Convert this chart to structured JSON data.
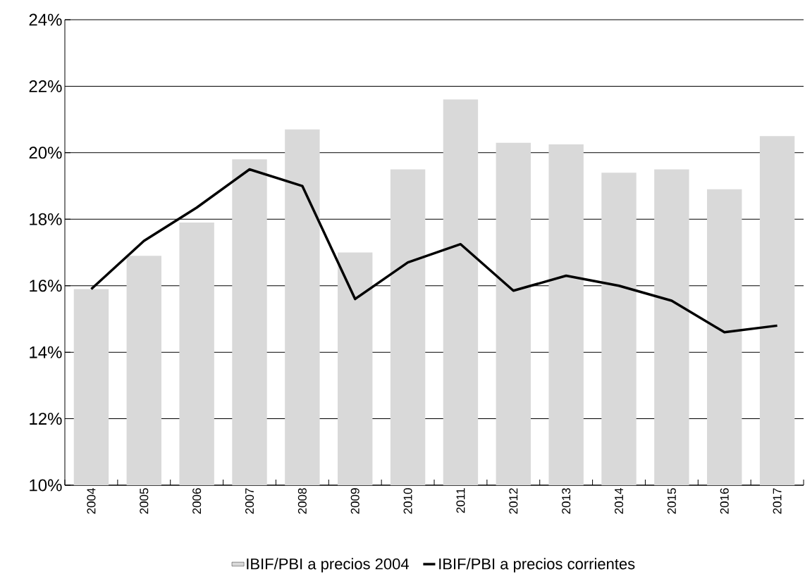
{
  "chart_data": {
    "type": "bar",
    "categories": [
      "2004",
      "2005",
      "2006",
      "2007",
      "2008",
      "2009",
      "2010",
      "2011",
      "2012",
      "2013",
      "2014",
      "2015",
      "2016",
      "2017"
    ],
    "series": [
      {
        "name": "IBIF/PBI a precios 2004",
        "color": "#d9d9d9",
        "values": [
          15.9,
          16.9,
          17.9,
          19.8,
          20.7,
          17.0,
          19.5,
          21.6,
          20.3,
          20.25,
          19.4,
          19.5,
          18.9,
          20.5
        ]
      },
      {
        "name": "IBIF/PBI a precios corrientes",
        "type": "line",
        "color": "#000000",
        "values": [
          15.9,
          17.35,
          18.35,
          19.5,
          19.0,
          15.6,
          16.7,
          17.25,
          15.85,
          16.3,
          16.0,
          15.55,
          14.6,
          14.8
        ]
      }
    ],
    "ylim": [
      10,
      24
    ],
    "yticks": [
      {
        "value": 10,
        "label": "10%"
      },
      {
        "value": 12,
        "label": "12%"
      },
      {
        "value": 14,
        "label": "14%"
      },
      {
        "value": 16,
        "label": "16%"
      },
      {
        "value": 18,
        "label": "18%"
      },
      {
        "value": 20,
        "label": "20%"
      },
      {
        "value": 22,
        "label": "22%"
      },
      {
        "value": 24,
        "label": "24%"
      }
    ],
    "grid": "y",
    "legend": "bottom"
  }
}
